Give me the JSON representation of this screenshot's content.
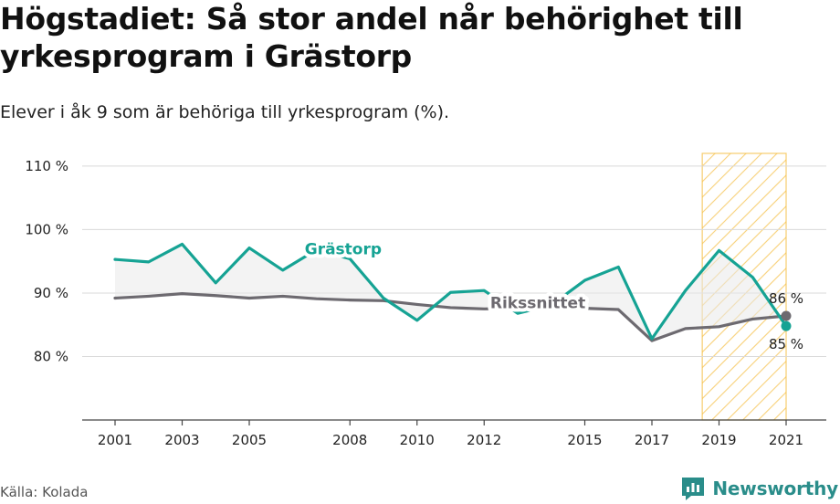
{
  "title": "Högstadiet: Så stor andel når behörighet till yrkesprogram i Grästorp",
  "subtitle": "Elever i åk 9 som är behöriga till yrkesprogram (%).",
  "source": "Källa: Kolada",
  "brand": "Newsworthy",
  "colors": {
    "grastorp": "#16a394",
    "riket": "#6d6a70",
    "highlight": "#f5c14a",
    "grid": "#d9d9d9",
    "fill": "#e9e9e9"
  },
  "chart_data": {
    "type": "line",
    "x": [
      2001,
      2002,
      2003,
      2004,
      2005,
      2006,
      2007,
      2008,
      2009,
      2010,
      2011,
      2012,
      2013,
      2014,
      2015,
      2016,
      2017,
      2018,
      2019,
      2020,
      2021
    ],
    "x_ticks": [
      2001,
      2003,
      2005,
      2008,
      2010,
      2012,
      2015,
      2017,
      2019,
      2021
    ],
    "y_ticks": [
      80,
      90,
      100,
      110
    ],
    "y_tick_labels": [
      "80 %",
      "90 %",
      "100 %",
      "110 %"
    ],
    "ylim": [
      70,
      112
    ],
    "grid": true,
    "highlight_range": [
      2019,
      2021
    ],
    "series": [
      {
        "name": "Grästorp",
        "values": [
          95.3,
          94.9,
          97.7,
          91.6,
          97.1,
          93.6,
          96.8,
          95.4,
          89.2,
          85.7,
          90.1,
          90.4,
          86.8,
          88.1,
          92.0,
          94.1,
          82.8,
          90.4,
          96.7,
          92.5,
          84.8
        ],
        "end_label": "85 %"
      },
      {
        "name": "Rikssnittet",
        "values": [
          89.2,
          89.5,
          89.9,
          89.6,
          89.2,
          89.5,
          89.1,
          88.9,
          88.8,
          88.2,
          87.7,
          87.5,
          87.6,
          87.7,
          87.6,
          87.4,
          82.5,
          84.4,
          84.7,
          85.9,
          86.4
        ],
        "end_label": "86 %"
      }
    ]
  }
}
